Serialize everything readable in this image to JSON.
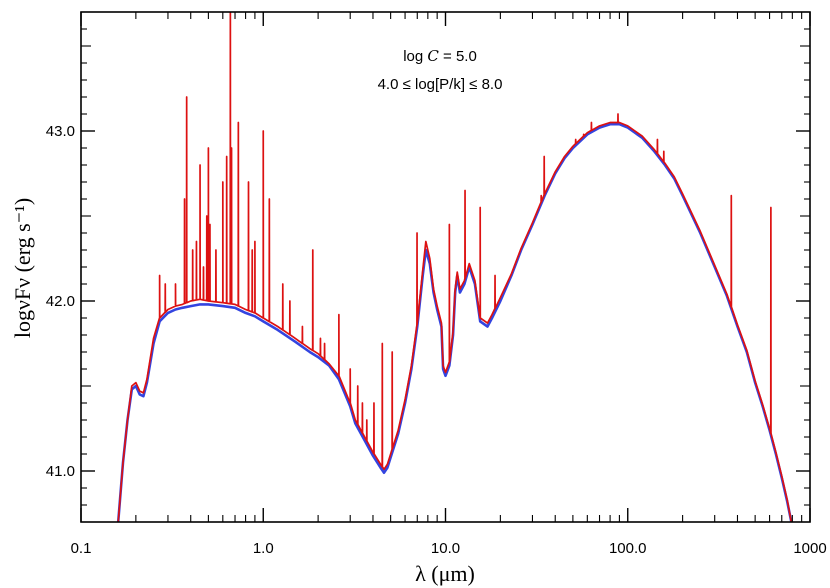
{
  "chart_data": {
    "type": "line",
    "title": "",
    "xlabel": "λ (μm)",
    "ylabel": "logνFν (erg s⁻¹)",
    "x_scale": "log",
    "xlim": [
      0.1,
      1000
    ],
    "ylim": [
      40.7,
      43.7
    ],
    "x_ticks": [
      {
        "value": 0.1,
        "label": "0.1"
      },
      {
        "value": 1,
        "label": "1.0"
      },
      {
        "value": 10,
        "label": "10.0"
      },
      {
        "value": 100,
        "label": "100.0"
      },
      {
        "value": 1000,
        "label": "1000"
      }
    ],
    "y_ticks": [
      {
        "value": 41.0,
        "label": "41.0"
      },
      {
        "value": 42.0,
        "label": "42.0"
      },
      {
        "value": 43.0,
        "label": "43.0"
      }
    ],
    "annotations": {
      "line1_prefix": "log ",
      "line1_symbol": "C",
      "line1_suffix": " = 5.0",
      "line2": "4.0 ≤  log[P/k] ≤ 8.0"
    },
    "grid": false,
    "legend": "none",
    "series": [
      {
        "color": "#3344e0",
        "points": [
          [
            0.16,
            40.7
          ],
          [
            0.17,
            41.05
          ],
          [
            0.18,
            41.3
          ],
          [
            0.19,
            41.48
          ],
          [
            0.2,
            41.5
          ],
          [
            0.21,
            41.45
          ],
          [
            0.22,
            41.44
          ],
          [
            0.23,
            41.52
          ],
          [
            0.25,
            41.75
          ],
          [
            0.27,
            41.88
          ],
          [
            0.3,
            41.93
          ],
          [
            0.33,
            41.95
          ],
          [
            0.36,
            41.96
          ],
          [
            0.4,
            41.97
          ],
          [
            0.45,
            41.98
          ],
          [
            0.5,
            41.98
          ],
          [
            0.6,
            41.97
          ],
          [
            0.7,
            41.96
          ],
          [
            0.8,
            41.93
          ],
          [
            0.9,
            41.91
          ],
          [
            1.0,
            41.88
          ],
          [
            1.2,
            41.83
          ],
          [
            1.5,
            41.76
          ],
          [
            1.8,
            41.7
          ],
          [
            2.0,
            41.67
          ],
          [
            2.3,
            41.62
          ],
          [
            2.6,
            41.54
          ],
          [
            3.0,
            41.38
          ],
          [
            3.2,
            41.28
          ],
          [
            3.6,
            41.18
          ],
          [
            4.0,
            41.09
          ],
          [
            4.4,
            41.02
          ],
          [
            4.6,
            40.99
          ],
          [
            4.8,
            41.02
          ],
          [
            5.0,
            41.08
          ],
          [
            5.5,
            41.22
          ],
          [
            6.0,
            41.4
          ],
          [
            6.5,
            41.6
          ],
          [
            7.0,
            41.85
          ],
          [
            7.5,
            42.15
          ],
          [
            7.8,
            42.3
          ],
          [
            8.2,
            42.22
          ],
          [
            8.6,
            42.05
          ],
          [
            9.0,
            41.95
          ],
          [
            9.5,
            41.85
          ],
          [
            9.7,
            41.6
          ],
          [
            10.0,
            41.56
          ],
          [
            10.5,
            41.62
          ],
          [
            11.0,
            41.8
          ],
          [
            11.3,
            42.05
          ],
          [
            11.6,
            42.15
          ],
          [
            12.0,
            42.05
          ],
          [
            12.7,
            42.1
          ],
          [
            13.5,
            42.2
          ],
          [
            14.5,
            42.1
          ],
          [
            15.5,
            41.88
          ],
          [
            17.0,
            41.85
          ],
          [
            18.0,
            41.9
          ],
          [
            20.0,
            42.0
          ],
          [
            23.0,
            42.15
          ],
          [
            26.0,
            42.3
          ],
          [
            30.0,
            42.45
          ],
          [
            35.0,
            42.62
          ],
          [
            40.0,
            42.75
          ],
          [
            45.0,
            42.84
          ],
          [
            50.0,
            42.9
          ],
          [
            60.0,
            42.98
          ],
          [
            70.0,
            43.02
          ],
          [
            80.0,
            43.04
          ],
          [
            90.0,
            43.04
          ],
          [
            100.0,
            43.02
          ],
          [
            120.0,
            42.96
          ],
          [
            140.0,
            42.88
          ],
          [
            160.0,
            42.8
          ],
          [
            180.0,
            42.72
          ],
          [
            200.0,
            42.62
          ],
          [
            250.0,
            42.4
          ],
          [
            300.0,
            42.2
          ],
          [
            350.0,
            42.03
          ],
          [
            400.0,
            41.85
          ],
          [
            450.0,
            41.7
          ],
          [
            500.0,
            41.52
          ],
          [
            550.0,
            41.38
          ],
          [
            600.0,
            41.24
          ],
          [
            650.0,
            41.1
          ],
          [
            700.0,
            40.96
          ],
          [
            750.0,
            40.82
          ],
          [
            790.0,
            40.7
          ]
        ]
      },
      {
        "color": "#dd1111",
        "points": [
          [
            0.16,
            40.7
          ],
          [
            0.17,
            41.05
          ],
          [
            0.18,
            41.3
          ],
          [
            0.19,
            41.5
          ],
          [
            0.2,
            41.52
          ],
          [
            0.21,
            41.47
          ],
          [
            0.22,
            41.46
          ],
          [
            0.23,
            41.54
          ],
          [
            0.25,
            41.78
          ],
          [
            0.27,
            41.9
          ],
          [
            0.3,
            41.95
          ],
          [
            0.33,
            41.97
          ],
          [
            0.36,
            41.98
          ],
          [
            0.4,
            42.0
          ],
          [
            0.45,
            42.01
          ],
          [
            0.5,
            42.0
          ],
          [
            0.6,
            41.99
          ],
          [
            0.7,
            41.98
          ],
          [
            0.8,
            41.95
          ],
          [
            0.9,
            41.93
          ],
          [
            1.0,
            41.9
          ],
          [
            1.2,
            41.85
          ],
          [
            1.5,
            41.78
          ],
          [
            1.8,
            41.72
          ],
          [
            2.0,
            41.69
          ],
          [
            2.3,
            41.63
          ],
          [
            2.6,
            41.56
          ],
          [
            3.0,
            41.4
          ],
          [
            3.2,
            41.3
          ],
          [
            3.6,
            41.2
          ],
          [
            4.0,
            41.11
          ],
          [
            4.4,
            41.04
          ],
          [
            4.6,
            41.01
          ],
          [
            4.8,
            41.04
          ],
          [
            5.0,
            41.1
          ],
          [
            5.5,
            41.24
          ],
          [
            6.0,
            41.42
          ],
          [
            6.5,
            41.62
          ],
          [
            7.0,
            41.87
          ],
          [
            7.5,
            42.18
          ],
          [
            7.8,
            42.35
          ],
          [
            8.2,
            42.25
          ],
          [
            8.6,
            42.07
          ],
          [
            9.0,
            41.97
          ],
          [
            9.5,
            41.87
          ],
          [
            9.7,
            41.62
          ],
          [
            10.0,
            41.58
          ],
          [
            10.5,
            41.64
          ],
          [
            11.0,
            41.82
          ],
          [
            11.3,
            42.07
          ],
          [
            11.6,
            42.17
          ],
          [
            12.0,
            42.07
          ],
          [
            12.7,
            42.12
          ],
          [
            13.5,
            42.22
          ],
          [
            14.5,
            42.12
          ],
          [
            15.5,
            41.9
          ],
          [
            17.0,
            41.87
          ],
          [
            18.0,
            41.92
          ],
          [
            20.0,
            42.02
          ],
          [
            23.0,
            42.16
          ],
          [
            26.0,
            42.31
          ],
          [
            30.0,
            42.46
          ],
          [
            35.0,
            42.63
          ],
          [
            40.0,
            42.76
          ],
          [
            45.0,
            42.85
          ],
          [
            50.0,
            42.91
          ],
          [
            60.0,
            42.99
          ],
          [
            70.0,
            43.03
          ],
          [
            80.0,
            43.05
          ],
          [
            90.0,
            43.05
          ],
          [
            100.0,
            43.03
          ],
          [
            120.0,
            42.97
          ],
          [
            140.0,
            42.89
          ],
          [
            160.0,
            42.81
          ],
          [
            180.0,
            42.73
          ],
          [
            200.0,
            42.63
          ],
          [
            250.0,
            42.41
          ],
          [
            300.0,
            42.21
          ],
          [
            350.0,
            42.04
          ],
          [
            400.0,
            41.86
          ],
          [
            450.0,
            41.71
          ],
          [
            500.0,
            41.53
          ],
          [
            550.0,
            41.39
          ],
          [
            600.0,
            41.25
          ],
          [
            650.0,
            41.11
          ],
          [
            700.0,
            40.97
          ],
          [
            750.0,
            40.83
          ],
          [
            790.0,
            40.7
          ]
        ],
        "emission_lines": [
          [
            0.27,
            42.15
          ],
          [
            0.29,
            42.1
          ],
          [
            0.33,
            42.1
          ],
          [
            0.37,
            42.6
          ],
          [
            0.38,
            43.2
          ],
          [
            0.41,
            42.3
          ],
          [
            0.43,
            42.35
          ],
          [
            0.45,
            42.8
          ],
          [
            0.47,
            42.2
          ],
          [
            0.49,
            42.5
          ],
          [
            0.5,
            42.9
          ],
          [
            0.51,
            42.45
          ],
          [
            0.55,
            42.3
          ],
          [
            0.6,
            42.7
          ],
          [
            0.63,
            42.85
          ],
          [
            0.66,
            43.8
          ],
          [
            0.67,
            42.9
          ],
          [
            0.73,
            43.05
          ],
          [
            0.83,
            42.7
          ],
          [
            0.87,
            42.3
          ],
          [
            0.9,
            42.35
          ],
          [
            1.0,
            43.0
          ],
          [
            1.08,
            42.6
          ],
          [
            1.28,
            42.1
          ],
          [
            1.4,
            42.0
          ],
          [
            1.64,
            41.85
          ],
          [
            1.87,
            42.3
          ],
          [
            2.06,
            41.78
          ],
          [
            2.17,
            41.75
          ],
          [
            2.6,
            41.92
          ],
          [
            3.0,
            41.6
          ],
          [
            3.3,
            41.5
          ],
          [
            3.5,
            41.4
          ],
          [
            3.7,
            41.3
          ],
          [
            4.05,
            41.4
          ],
          [
            4.5,
            41.75
          ],
          [
            5.1,
            41.7
          ],
          [
            6.98,
            42.4
          ],
          [
            10.5,
            42.45
          ],
          [
            12.8,
            42.65
          ],
          [
            15.5,
            42.55
          ],
          [
            18.7,
            42.15
          ],
          [
            33.5,
            42.62
          ],
          [
            34.8,
            42.85
          ],
          [
            51.8,
            42.95
          ],
          [
            57.3,
            42.98
          ],
          [
            63.2,
            43.05
          ],
          [
            88.4,
            43.1
          ],
          [
            145.5,
            42.95
          ],
          [
            157.7,
            42.88
          ],
          [
            370.0,
            42.62
          ],
          [
            610.0,
            42.55
          ]
        ]
      }
    ]
  }
}
